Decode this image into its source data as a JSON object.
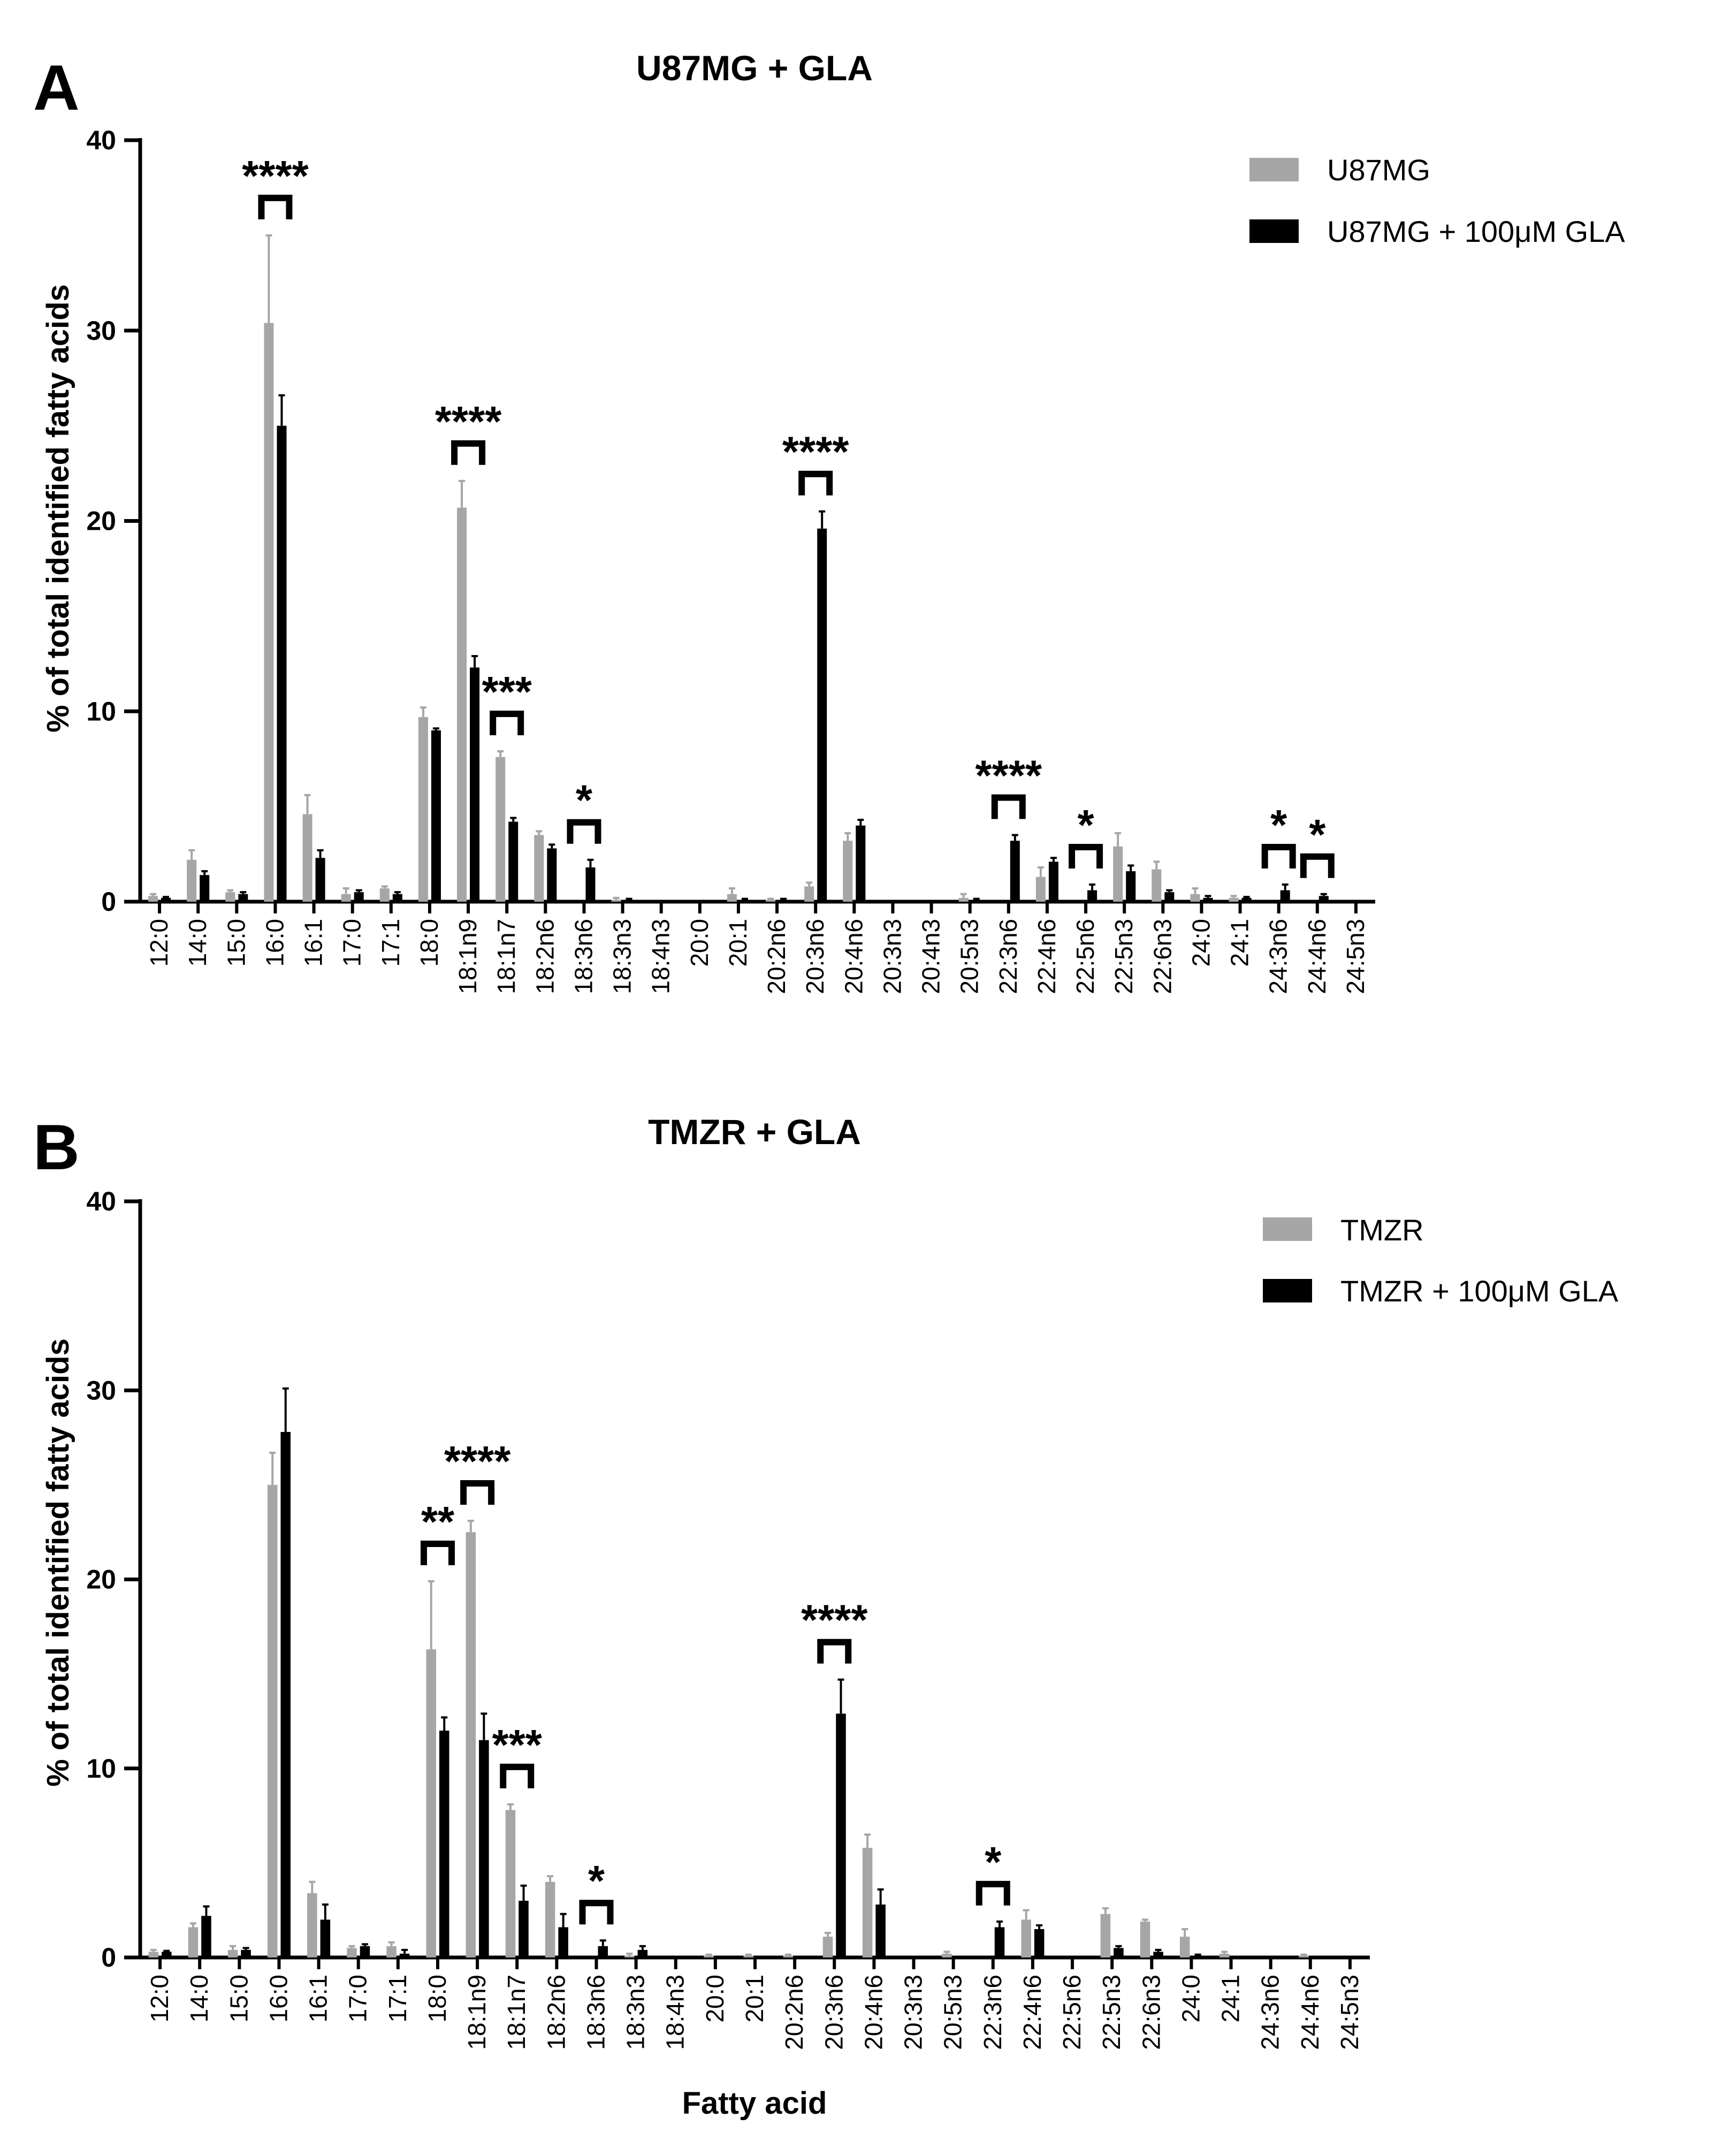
{
  "colors": {
    "control": "#a6a6a6",
    "treated": "#000000",
    "axis": "#000000"
  },
  "chart_data": [
    {
      "panel": "A",
      "type": "bar",
      "title": "U87MG + GLA",
      "xlabel": "",
      "ylabel": "% of total identified fatty acids",
      "ylim": [
        0,
        40
      ],
      "yticks": [
        0,
        10,
        20,
        30,
        40
      ],
      "legend_position": "top-right",
      "categories": [
        "12:0",
        "14:0",
        "15:0",
        "16:0",
        "16:1",
        "17:0",
        "17:1",
        "18:0",
        "18:1n9",
        "18:1n7",
        "18:2n6",
        "18:3n6",
        "18:3n3",
        "18:4n3",
        "20:0",
        "20:1",
        "20:2n6",
        "20:3n6",
        "20:4n6",
        "20:3n3",
        "20:4n3",
        "20:5n3",
        "22:3n6",
        "22:4n6",
        "22:5n6",
        "22:5n3",
        "22:6n3",
        "24:0",
        "24:1",
        "24:3n6",
        "24:4n6",
        "24:5n3"
      ],
      "series": [
        {
          "name": "U87MG",
          "values": [
            0.3,
            2.2,
            0.5,
            30.4,
            4.6,
            0.4,
            0.7,
            9.7,
            20.7,
            7.6,
            3.5,
            0,
            0.1,
            0,
            0,
            0.4,
            0.1,
            0.8,
            3.2,
            0,
            0,
            0.2,
            0,
            1.3,
            0,
            2.9,
            1.7,
            0.4,
            0.2,
            0,
            0,
            0
          ],
          "errors": [
            0.1,
            0.5,
            0.1,
            4.6,
            1.0,
            0.3,
            0.1,
            0.5,
            1.4,
            0.3,
            0.2,
            0,
            0.1,
            0,
            0,
            0.3,
            0.05,
            0.2,
            0.4,
            0,
            0,
            0.2,
            0,
            0.5,
            0,
            0.7,
            0.4,
            0.3,
            0.1,
            0,
            0,
            0
          ]
        },
        {
          "name": "U87MG + 100μM GLA",
          "values": [
            0.2,
            1.4,
            0.4,
            25.0,
            2.3,
            0.5,
            0.4,
            9.0,
            12.3,
            4.2,
            2.8,
            1.8,
            0.1,
            0,
            0,
            0.1,
            0.1,
            19.6,
            4.0,
            0,
            0,
            0.1,
            3.2,
            2.1,
            0.6,
            1.6,
            0.5,
            0.2,
            0.2,
            0.6,
            0.3,
            0
          ]
        }
      ],
      "treated_errors": [
        0.05,
        0.2,
        0.1,
        1.6,
        0.4,
        0.1,
        0.1,
        0.1,
        0.6,
        0.2,
        0.2,
        0.4,
        0.05,
        0,
        0,
        0.05,
        0.05,
        0.9,
        0.3,
        0,
        0,
        0.05,
        0.3,
        0.2,
        0.3,
        0.3,
        0.1,
        0.1,
        0.05,
        0.3,
        0.1,
        0
      ],
      "significance": [
        {
          "category": "16:0",
          "label": "****"
        },
        {
          "category": "18:1n9",
          "label": "****"
        },
        {
          "category": "18:1n7",
          "label": "***"
        },
        {
          "category": "18:3n6",
          "label": "*"
        },
        {
          "category": "20:3n6",
          "label": "****"
        },
        {
          "category": "22:3n6",
          "label": "****"
        },
        {
          "category": "22:5n6",
          "label": "*"
        },
        {
          "category": "24:3n6",
          "label": "*"
        },
        {
          "category": "24:4n6",
          "label": "*"
        }
      ]
    },
    {
      "panel": "B",
      "type": "bar",
      "title": "TMZR + GLA",
      "xlabel": "Fatty acid",
      "ylabel": "% of total identified fatty acids",
      "ylim": [
        0,
        40
      ],
      "yticks": [
        0,
        10,
        20,
        30,
        40
      ],
      "legend_position": "top-right",
      "categories": [
        "12:0",
        "14:0",
        "15:0",
        "16:0",
        "16:1",
        "17:0",
        "17:1",
        "18:0",
        "18:1n9",
        "18:1n7",
        "18:2n6",
        "18:3n6",
        "18:3n3",
        "18:4n3",
        "20:0",
        "20:1",
        "20:2n6",
        "20:3n6",
        "20:4n6",
        "20:3n3",
        "20:5n3",
        "22:3n6",
        "22:4n6",
        "22:5n6",
        "22:5n3",
        "22:6n3",
        "24:0",
        "24:1",
        "24:3n6",
        "24:4n6",
        "24:5n3"
      ],
      "series": [
        {
          "name": "TMZR",
          "values": [
            0.3,
            1.6,
            0.4,
            25.0,
            3.4,
            0.5,
            0.6,
            16.3,
            22.5,
            7.8,
            4.0,
            0,
            0.1,
            0,
            0.1,
            0.1,
            0.1,
            1.1,
            5.8,
            0,
            0.2,
            0,
            2.0,
            0,
            2.3,
            1.9,
            1.1,
            0.2,
            0,
            0.1,
            0
          ],
          "errors": [
            0.1,
            0.2,
            0.2,
            1.7,
            0.6,
            0.1,
            0.2,
            3.6,
            0.6,
            0.3,
            0.3,
            0,
            0.1,
            0,
            0.05,
            0.05,
            0.05,
            0.2,
            0.7,
            0,
            0.1,
            0,
            0.5,
            0,
            0.3,
            0.1,
            0.4,
            0.1,
            0,
            0.05,
            0
          ]
        },
        {
          "name": "TMZR + 100μM GLA",
          "values": [
            0.3,
            2.2,
            0.4,
            27.8,
            2.0,
            0.6,
            0.2,
            12.0,
            11.5,
            3.0,
            1.6,
            0.6,
            0.4,
            0,
            0,
            0,
            0,
            12.9,
            2.8,
            0,
            0,
            1.6,
            1.5,
            0,
            0.5,
            0.3,
            0.1,
            0,
            0,
            0,
            0
          ]
        }
      ],
      "treated_errors": [
        0.05,
        0.5,
        0.1,
        2.3,
        0.8,
        0.1,
        0.2,
        0.7,
        1.4,
        0.8,
        0.7,
        0.3,
        0.2,
        0,
        0,
        0,
        0,
        1.8,
        0.8,
        0,
        0,
        0.3,
        0.2,
        0,
        0.1,
        0.1,
        0.05,
        0,
        0,
        0,
        0
      ],
      "significance": [
        {
          "category": "18:0",
          "label": "**"
        },
        {
          "category": "18:1n9",
          "label": "****"
        },
        {
          "category": "18:1n7",
          "label": "***"
        },
        {
          "category": "18:3n6",
          "label": "*"
        },
        {
          "category": "20:3n6",
          "label": "****"
        },
        {
          "category": "22:3n6",
          "label": "*"
        }
      ]
    }
  ]
}
